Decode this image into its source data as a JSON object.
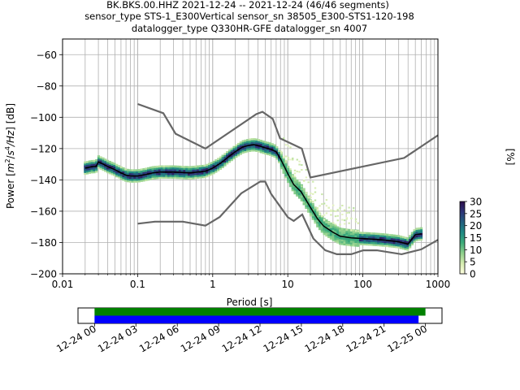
{
  "title": {
    "line1": "BK.BKS.00.HHZ   2021-12-24 -- 2021-12-24  (46/46 segments)",
    "line2": "sensor_type STS-1_E300Vertical sensor_sn 38505_E300-STS1-120-198",
    "line3": "datalogger_type Q330HR-GFE datalogger_sn 4007"
  },
  "chart_data": [
    {
      "type": "heatmap",
      "name": "ppsd",
      "xlabel": "Period [s]",
      "ylabel": "Power [m²/s⁴/Hz] [dB]",
      "ylabel_parts": [
        "Power [",
        "m",
        "2",
        "/",
        "s",
        "4",
        "/Hz",
        "] [dB]"
      ],
      "xscale": "log",
      "xlim": [
        0.01,
        1000
      ],
      "ylim": [
        -200,
        -50
      ],
      "x_ticks": [
        {
          "value": 0.01,
          "label": "0.01"
        },
        {
          "value": 0.1,
          "label": "0.1"
        },
        {
          "value": 1,
          "label": "1"
        },
        {
          "value": 10,
          "label": "10"
        },
        {
          "value": 100,
          "label": "100"
        },
        {
          "value": 1000,
          "label": "1000"
        }
      ],
      "y_ticks": [
        -60,
        -80,
        -100,
        -120,
        -140,
        -160,
        -180,
        -200
      ],
      "y_tick_labels": [
        "−60",
        "−80",
        "−100",
        "−120",
        "−140",
        "−160",
        "−180",
        "−200"
      ],
      "grid": true,
      "colorbar": {
        "label": "[%]",
        "min": 0,
        "max": 30,
        "ticks": [
          0,
          5,
          10,
          15,
          20,
          25,
          30
        ],
        "colors": [
          "#ffffe0",
          "#d6ecb0",
          "#8fd08c",
          "#3dab7a",
          "#1f8a84",
          "#23607f",
          "#2d3579",
          "#2b0d4b"
        ]
      },
      "nhnm": {
        "color": "#666666",
        "x": [
          0.1,
          0.22,
          0.32,
          0.8,
          3.8,
          4.6,
          6.3,
          7.9,
          15.4,
          20,
          354.8,
          1000
        ],
        "y": [
          -91.5,
          -97.4,
          -110.5,
          -120,
          -98,
          -96.5,
          -101,
          -113.5,
          -120,
          -138.5,
          -126,
          -111.5
        ]
      },
      "nlnm": {
        "color": "#666666",
        "x": [
          0.1,
          0.17,
          0.4,
          0.8,
          1.24,
          2.4,
          4.3,
          5,
          6,
          10,
          12,
          15.6,
          21.9,
          31.6,
          45,
          70,
          101,
          154,
          328,
          600,
          1000
        ],
        "y": [
          -168,
          -166.7,
          -166.7,
          -169.2,
          -163.7,
          -148.6,
          -141.1,
          -141.1,
          -149,
          -163.8,
          -166.2,
          -162.1,
          -177.5,
          -185,
          -187.5,
          -187.5,
          -185,
          -185,
          -187.5,
          -184.4,
          -178.3
        ]
      },
      "mean_curve": {
        "color": "#000000",
        "x": [
          0.02,
          0.025,
          0.028,
          0.03,
          0.035,
          0.04,
          0.05,
          0.06,
          0.07,
          0.08,
          0.1,
          0.13,
          0.16,
          0.2,
          0.3,
          0.5,
          0.8,
          1.0,
          1.3,
          1.6,
          2.0,
          2.5,
          3.0,
          3.5,
          4.0,
          5.0,
          6.0,
          7.0,
          8.0,
          10,
          12,
          15,
          20,
          25,
          30,
          40,
          50,
          70,
          100,
          150,
          200,
          300,
          400,
          500,
          600
        ],
        "y": [
          -132.5,
          -131.5,
          -131.5,
          -128.5,
          -130,
          -131.5,
          -133.5,
          -135.5,
          -137,
          -137.5,
          -137.5,
          -136.5,
          -135.5,
          -135,
          -135,
          -135.5,
          -134.5,
          -132.5,
          -129,
          -125.5,
          -122,
          -119,
          -118,
          -117.5,
          -118,
          -119.5,
          -120.5,
          -122,
          -126.5,
          -136,
          -143,
          -147.5,
          -157.5,
          -165,
          -169.5,
          -173.5,
          -176,
          -177,
          -177.5,
          -178,
          -178.5,
          -179.5,
          -181,
          -175,
          -174.5
        ]
      }
    },
    {
      "type": "timeline",
      "name": "data-coverage",
      "x_ticks": [
        "12-24 00",
        "12-24 03",
        "12-24 06",
        "12-24 09",
        "12-24 12",
        "12-24 15",
        "12-24 18",
        "12-24 21",
        "12-25 00"
      ],
      "xlim_hours": [
        -1.2,
        25.2
      ],
      "bars": [
        {
          "name": "available-data",
          "color": "#008000",
          "start_hour": 0,
          "end_hour": 24.0
        },
        {
          "name": "used-data",
          "color": "#0000ff",
          "start_hour": 0,
          "end_hour": 23.5
        }
      ]
    }
  ]
}
